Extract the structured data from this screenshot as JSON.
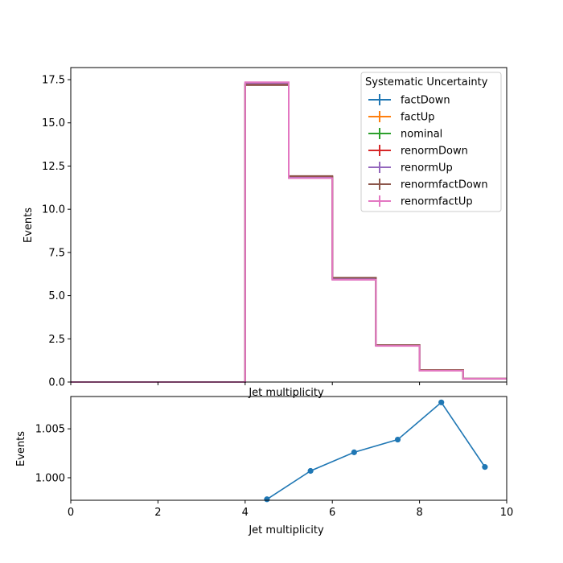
{
  "chart_data": [
    {
      "type": "line",
      "drawstyle": "steps",
      "xlabel": "Jet multiplicity",
      "ylabel": "Events",
      "xlim": [
        0,
        10
      ],
      "ylim": [
        0,
        18.2
      ],
      "x_ticks": [
        "0",
        "2",
        "4",
        "6",
        "8",
        "10"
      ],
      "y_ticks": [
        "0.0",
        "2.5",
        "5.0",
        "7.5",
        "10.0",
        "12.5",
        "15.0",
        "17.5"
      ],
      "bin_edges": [
        0,
        1,
        2,
        3,
        4,
        5,
        6,
        7,
        8,
        9,
        10
      ],
      "legend": {
        "title": "Systematic Uncertainty",
        "position": "upper-right"
      },
      "grid": false,
      "series": [
        {
          "name": "factDown",
          "color": "#1f77b4",
          "values": [
            0,
            0,
            0,
            0,
            17.21,
            11.88,
            6.01,
            2.12,
            0.68,
            0.19
          ]
        },
        {
          "name": "factUp",
          "color": "#ff7f0e",
          "values": [
            0,
            0,
            0,
            0,
            17.25,
            11.86,
            5.98,
            2.11,
            0.67,
            0.19
          ]
        },
        {
          "name": "nominal",
          "color": "#2ca02c",
          "values": [
            0,
            0,
            0,
            0,
            17.23,
            11.87,
            6.0,
            2.12,
            0.68,
            0.19
          ]
        },
        {
          "name": "renormDown",
          "color": "#d62728",
          "values": [
            0,
            0,
            0,
            0,
            17.2,
            11.9,
            6.02,
            2.13,
            0.69,
            0.19
          ]
        },
        {
          "name": "renormUp",
          "color": "#9467bd",
          "values": [
            0,
            0,
            0,
            0,
            17.3,
            11.83,
            5.96,
            2.1,
            0.67,
            0.19
          ]
        },
        {
          "name": "renormfactDown",
          "color": "#8c564b",
          "values": [
            0,
            0,
            0,
            0,
            17.18,
            11.92,
            6.04,
            2.14,
            0.69,
            0.19
          ]
        },
        {
          "name": "renormfactUp",
          "color": "#e377c2",
          "values": [
            0,
            0,
            0,
            0,
            17.35,
            11.8,
            5.92,
            2.09,
            0.66,
            0.19
          ]
        }
      ]
    },
    {
      "type": "line",
      "xlabel": "Jet multiplicity",
      "ylabel": "Events",
      "xlim": [
        0,
        10
      ],
      "ylim": [
        0.9977,
        1.0083
      ],
      "x_ticks": [
        "0",
        "2",
        "4",
        "6",
        "8",
        "10"
      ],
      "y_ticks": [
        "1.000",
        "1.005"
      ],
      "grid": false,
      "series": [
        {
          "color": "#1f77b4",
          "x": [
            4.5,
            5.5,
            6.5,
            7.5,
            8.5,
            9.5
          ],
          "y": [
            0.9978,
            1.0007,
            1.0026,
            1.0039,
            1.0077,
            1.0011
          ]
        }
      ]
    }
  ]
}
